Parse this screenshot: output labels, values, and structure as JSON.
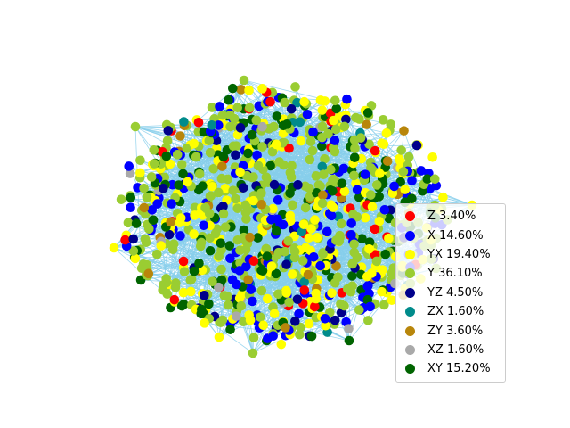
{
  "chart_data": {
    "type": "network",
    "node_count": 1000,
    "edge_color": "#87ceeb",
    "legend_placement": "right",
    "categories": [
      {
        "label": "Z 3.40%",
        "percent": 3.4,
        "color": "#ff0000"
      },
      {
        "label": "X 14.60%",
        "percent": 14.6,
        "color": "#0000ff"
      },
      {
        "label": "YX 19.40%",
        "percent": 19.4,
        "color": "#ffff00"
      },
      {
        "label": "Y 36.10%",
        "percent": 36.1,
        "color": "#9acd32"
      },
      {
        "label": "YZ 4.50%",
        "percent": 4.5,
        "color": "#00008b"
      },
      {
        "label": "ZX 1.60%",
        "percent": 1.6,
        "color": "#008b8b"
      },
      {
        "label": "ZY 3.60%",
        "percent": 3.6,
        "color": "#b8860b"
      },
      {
        "label": "XZ 1.60%",
        "percent": 1.6,
        "color": "#a9a9a9"
      },
      {
        "label": "XY 15.20%",
        "percent": 15.2,
        "color": "#006400"
      }
    ]
  }
}
